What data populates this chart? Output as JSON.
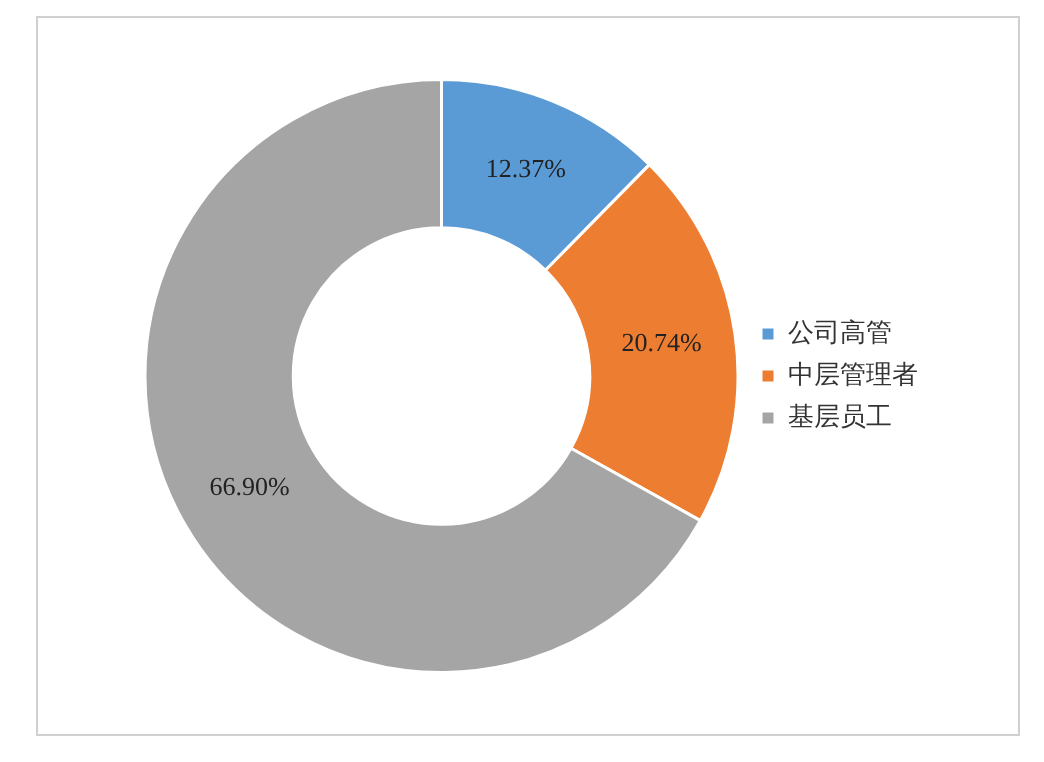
{
  "chart_data": {
    "type": "donut",
    "categories": [
      "公司高管",
      "中层管理者",
      "基层员工"
    ],
    "values": [
      12.37,
      20.74,
      66.9
    ],
    "value_labels": [
      "12.37%",
      "20.74%",
      "66.90%"
    ],
    "colors": [
      "#5b9bd5",
      "#ed7d31",
      "#a5a5a5"
    ],
    "legend": "right"
  }
}
